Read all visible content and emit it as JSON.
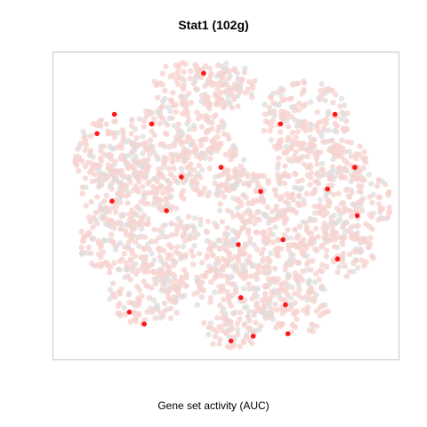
{
  "chart_data": {
    "type": "scatter",
    "title": "Stat1 (102g)",
    "xlabel": "Gene set activity (AUC)",
    "ylabel": "",
    "xlim": [
      -35,
      35
    ],
    "ylim": [
      -32,
      32
    ],
    "axes_visible": false,
    "grid": false,
    "legend": "none",
    "colors": {
      "background_points": "#f6d3d0",
      "grey_points": "#dedede",
      "high_activity": "#ff0000",
      "frame": "#c8c8c8"
    },
    "series": [
      {
        "values": [
          {
            "x": -26,
            "y": 15
          },
          {
            "x": -22.5,
            "y": 19
          },
          {
            "x": -23,
            "y": 1
          },
          {
            "x": -19.5,
            "y": -22
          },
          {
            "x": -16.5,
            "y": -24.5
          },
          {
            "x": -12,
            "y": -1
          },
          {
            "x": -4.5,
            "y": 27.5
          },
          {
            "x": -1,
            "y": 8
          },
          {
            "x": 2.5,
            "y": -8
          },
          {
            "x": 3,
            "y": -19
          },
          {
            "x": 5.5,
            "y": -27
          },
          {
            "x": 11.5,
            "y": -7
          },
          {
            "x": 11,
            "y": 17
          },
          {
            "x": 12,
            "y": -20.5
          },
          {
            "x": 12.5,
            "y": -26.5
          },
          {
            "x": 20.5,
            "y": 3.5
          },
          {
            "x": 22.5,
            "y": -11
          },
          {
            "x": 26,
            "y": 8
          },
          {
            "x": 26.5,
            "y": -2
          },
          {
            "x": 22,
            "y": 19
          },
          {
            "x": 7,
            "y": 3
          },
          {
            "x": -9,
            "y": 6
          },
          {
            "x": 1,
            "y": -28
          },
          {
            "x": -15,
            "y": 17
          }
        ]
      }
    ]
  }
}
